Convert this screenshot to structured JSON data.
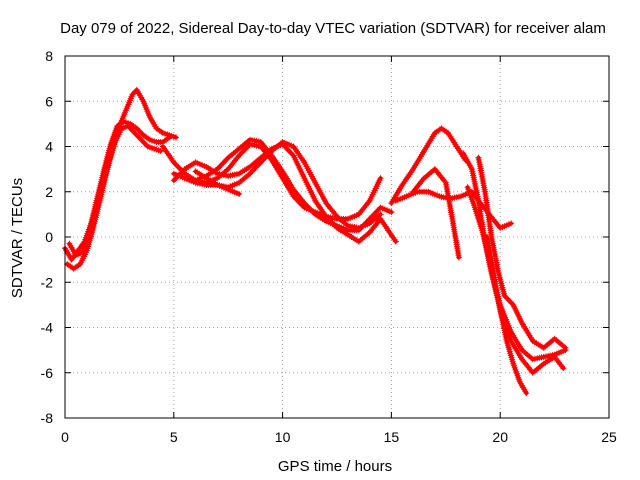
{
  "chart_data": {
    "type": "line",
    "title": "Day 079 of 2022, Sidereal Day-to-day VTEC variation (SDTVAR) for receiver alam",
    "xlabel": "GPS time / hours",
    "ylabel": "SDTVAR / TECUs",
    "xlim": [
      0,
      25
    ],
    "ylim": [
      -8,
      8
    ],
    "xticks": [
      "0",
      "5",
      "10",
      "15",
      "20",
      "25"
    ],
    "yticks": [
      "8",
      "6",
      "4",
      "2",
      "0",
      "-2",
      "-4",
      "-6",
      "-8"
    ],
    "grid": true,
    "series_color": "#ff0000",
    "marker": "plus",
    "series": [
      {
        "x": [
          0.0,
          0.3,
          0.6,
          0.9,
          1.2,
          1.5,
          1.8,
          2.1,
          2.4,
          2.7,
          3.0,
          3.3,
          3.6,
          3.9,
          4.2,
          4.5,
          4.8
        ],
        "y": [
          -0.5,
          -1.0,
          -0.6,
          -0.2,
          0.6,
          1.8,
          3.0,
          4.1,
          4.9,
          5.1,
          5.0,
          4.8,
          4.5,
          4.3,
          4.2,
          4.2,
          4.4
        ]
      },
      {
        "x": [
          0.1,
          0.4,
          0.7,
          1.0,
          1.3,
          1.6,
          1.9,
          2.2,
          2.5,
          2.8,
          3.1,
          3.3,
          3.6,
          3.9,
          4.2,
          4.5,
          4.8,
          5.1
        ],
        "y": [
          -1.2,
          -1.4,
          -1.2,
          -0.6,
          0.4,
          1.6,
          2.8,
          3.9,
          4.9,
          5.6,
          6.3,
          6.5,
          6.0,
          5.3,
          4.8,
          4.6,
          4.5,
          4.4
        ]
      },
      {
        "x": [
          0.2,
          0.5,
          0.8,
          1.1,
          1.4,
          1.7,
          2.0,
          2.3,
          2.6,
          2.9,
          3.2,
          3.5,
          3.8,
          4.1,
          4.4
        ],
        "y": [
          -0.3,
          -0.8,
          -0.7,
          0.2,
          1.2,
          2.2,
          3.3,
          4.2,
          4.8,
          4.9,
          4.6,
          4.3,
          4.0,
          3.9,
          3.8
        ]
      },
      {
        "x": [
          4.5,
          5.0,
          5.5,
          6.0,
          6.5,
          7.0,
          7.5,
          8.0,
          8.5,
          9.0,
          9.5,
          10.0,
          10.5,
          11.0,
          11.5,
          12.0,
          12.5,
          13.0,
          13.5,
          14.0,
          14.5
        ],
        "y": [
          4.0,
          3.3,
          2.8,
          2.5,
          2.4,
          2.6,
          3.0,
          3.6,
          4.1,
          4.0,
          3.4,
          2.6,
          1.8,
          1.3,
          1.1,
          0.9,
          0.8,
          0.8,
          1.0,
          1.6,
          2.6
        ]
      },
      {
        "x": [
          5.0,
          5.5,
          6.0,
          6.5,
          7.0,
          7.5,
          8.0,
          8.5,
          9.0,
          9.5,
          10.0,
          10.5,
          11.0,
          11.5,
          12.0,
          12.5,
          13.0,
          13.5,
          14.0,
          14.5,
          15.0
        ],
        "y": [
          2.8,
          2.6,
          2.5,
          2.7,
          3.0,
          3.5,
          3.9,
          4.3,
          4.2,
          3.6,
          2.9,
          2.1,
          1.5,
          1.0,
          0.7,
          0.5,
          0.3,
          0.3,
          0.8,
          1.3,
          1.1
        ]
      },
      {
        "x": [
          5.0,
          5.5,
          6.0,
          6.5,
          7.0,
          7.5,
          8.0,
          8.5,
          9.0,
          9.5,
          10.0,
          10.5,
          11.0,
          11.5,
          12.0,
          12.5,
          13.0,
          13.5,
          14.0,
          14.5,
          15.2
        ],
        "y": [
          2.5,
          3.0,
          3.3,
          3.1,
          2.8,
          2.7,
          2.8,
          3.1,
          3.5,
          3.9,
          4.1,
          3.6,
          2.6,
          1.6,
          0.9,
          0.4,
          0.1,
          -0.2,
          0.2,
          0.8,
          -0.2
        ]
      },
      {
        "x": [
          5.5,
          6.0,
          6.5,
          7.0,
          7.5,
          8.0,
          8.5,
          9.0,
          9.5,
          10.0,
          10.5,
          11.0,
          11.5,
          12.0,
          12.5,
          13.0,
          13.5,
          14.0,
          14.5
        ],
        "y": [
          2.6,
          2.4,
          2.3,
          2.3,
          2.2,
          2.4,
          2.8,
          3.3,
          3.8,
          4.2,
          4.0,
          3.3,
          2.4,
          1.5,
          0.9,
          0.5,
          0.4,
          0.6,
          1.0
        ]
      },
      {
        "x": [
          6.0,
          6.5,
          7.0,
          7.5,
          8.0
        ],
        "y": [
          2.9,
          2.6,
          2.3,
          2.1,
          1.9
        ]
      },
      {
        "x": [
          15.0,
          15.5,
          16.0,
          16.5,
          17.0,
          17.3,
          17.6,
          18.0,
          18.4
        ],
        "y": [
          1.5,
          2.3,
          3.0,
          3.8,
          4.6,
          4.8,
          4.6,
          4.0,
          3.4
        ]
      },
      {
        "x": [
          15.2,
          15.7,
          16.2,
          16.7,
          17.2,
          17.7,
          18.2,
          18.7,
          19.0,
          19.5,
          20.0,
          20.5
        ],
        "y": [
          1.6,
          1.8,
          2.0,
          2.0,
          1.8,
          1.7,
          1.8,
          2.0,
          1.6,
          1.0,
          0.4,
          0.6
        ]
      },
      {
        "x": [
          16.0,
          16.5,
          17.0,
          17.5,
          17.8,
          18.1
        ],
        "y": [
          2.0,
          2.6,
          3.0,
          2.4,
          0.8,
          -0.9
        ]
      },
      {
        "x": [
          18.3,
          18.7,
          19.0,
          19.3,
          19.6,
          20.0,
          20.5,
          21.0,
          21.5,
          22.0,
          22.5,
          23.0
        ],
        "y": [
          3.7,
          3.0,
          1.6,
          -0.2,
          -1.6,
          -3.0,
          -4.2,
          -5.0,
          -5.4,
          -5.3,
          -5.2,
          -5.0
        ]
      },
      {
        "x": [
          18.5,
          18.8,
          19.2,
          19.5,
          19.8,
          20.1,
          20.5,
          21.0,
          21.5,
          22.0,
          22.5,
          22.9
        ],
        "y": [
          2.2,
          1.4,
          0.2,
          -1.0,
          -2.4,
          -3.6,
          -4.6,
          -5.4,
          -6.0,
          -5.6,
          -5.3,
          -5.8
        ]
      },
      {
        "x": [
          19.0,
          19.3,
          19.6,
          19.9,
          20.2,
          20.6,
          21.0,
          21.5,
          22.0,
          22.5,
          23.0
        ],
        "y": [
          3.5,
          2.0,
          0.0,
          -1.5,
          -2.6,
          -3.0,
          -3.8,
          -4.6,
          -4.9,
          -4.5,
          -4.9
        ]
      },
      {
        "x": [
          19.4,
          19.7,
          20.0,
          20.3,
          20.6,
          20.9,
          21.2
        ],
        "y": [
          0.0,
          -1.6,
          -3.2,
          -4.6,
          -5.6,
          -6.4,
          -6.9
        ]
      }
    ]
  }
}
